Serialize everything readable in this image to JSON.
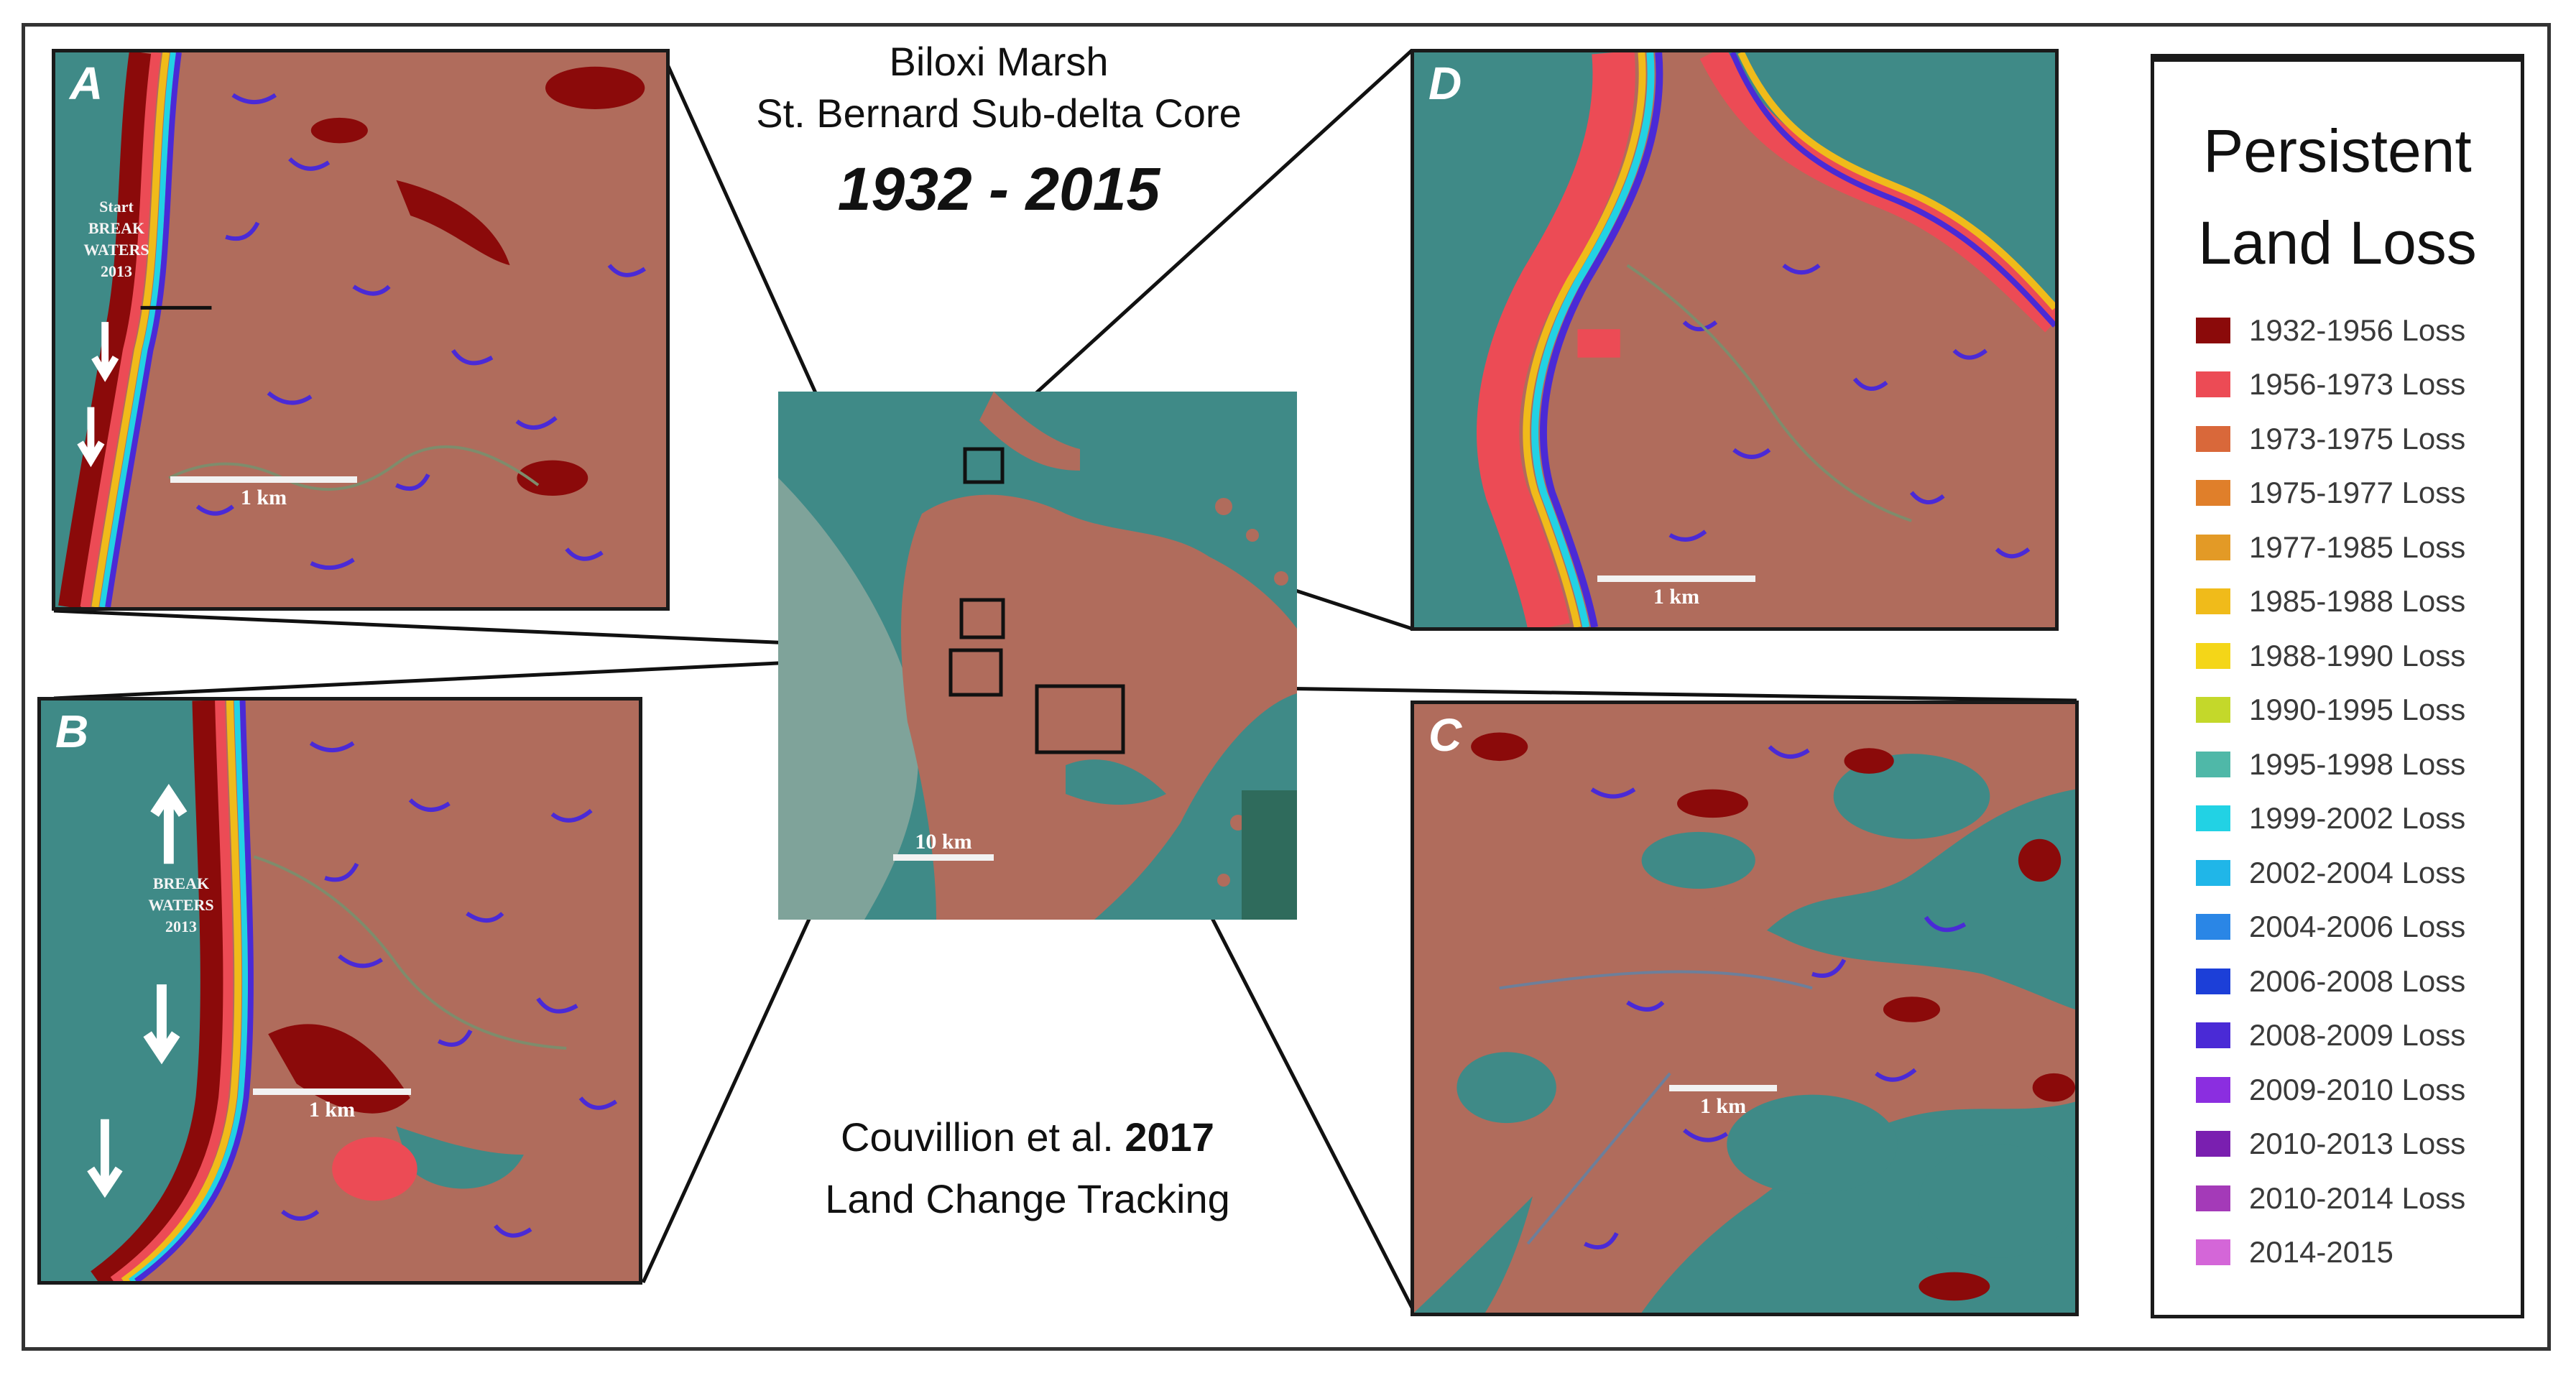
{
  "title": {
    "line1": "Biloxi Marsh",
    "line2": "St. Bernard Sub-delta Core",
    "years": "1932 - 2015"
  },
  "credit": {
    "authors": "Couvillion et al.",
    "year": "2017",
    "line2": "Land Change Tracking"
  },
  "panels": {
    "A": {
      "letter": "A",
      "scale": "1 km",
      "label_lines": [
        "Start",
        "BREAK",
        "WATERS",
        "2013"
      ]
    },
    "B": {
      "letter": "B",
      "scale": "1 km",
      "label_lines": [
        "BREAK",
        "WATERS",
        "2013"
      ]
    },
    "C": {
      "letter": "C",
      "scale": "1 km"
    },
    "D": {
      "letter": "D",
      "scale": "1 km"
    },
    "center": {
      "scale": "10 km"
    }
  },
  "colors": {
    "water": "#3f8a87",
    "marsh": "#b06c5c",
    "frame": "#1a1a1a"
  },
  "legend": {
    "title_line1": "Persistent",
    "title_line2": "Land Loss",
    "items": [
      {
        "label": "1932-1956 Loss",
        "color": "#8b0a0a"
      },
      {
        "label": "1956-1973 Loss",
        "color": "#ec4b55"
      },
      {
        "label": "1973-1975 Loss",
        "color": "#d9683a"
      },
      {
        "label": "1975-1977 Loss",
        "color": "#e07f2a"
      },
      {
        "label": "1977-1985 Loss",
        "color": "#e39a26"
      },
      {
        "label": "1985-1988 Loss",
        "color": "#f0bb1a"
      },
      {
        "label": "1988-1990 Loss",
        "color": "#f4d618"
      },
      {
        "label": "1990-1995 Loss",
        "color": "#c4d82a"
      },
      {
        "label": "1995-1998 Loss",
        "color": "#4fb8a8"
      },
      {
        "label": "1999-2002 Loss",
        "color": "#22d2e4"
      },
      {
        "label": "2002-2004 Loss",
        "color": "#20b6e8"
      },
      {
        "label": "2004-2006 Loss",
        "color": "#2a86e6"
      },
      {
        "label": "2006-2008 Loss",
        "color": "#1c3fd8"
      },
      {
        "label": "2008-2009 Loss",
        "color": "#4a2ad6"
      },
      {
        "label": "2009-2010 Loss",
        "color": "#8b2ee0"
      },
      {
        "label": "2010-2013 Loss",
        "color": "#7a1fb0"
      },
      {
        "label": "2010-2014 Loss",
        "color": "#a43ab8"
      },
      {
        "label": "2014-2015",
        "color": "#d466d8"
      }
    ]
  }
}
